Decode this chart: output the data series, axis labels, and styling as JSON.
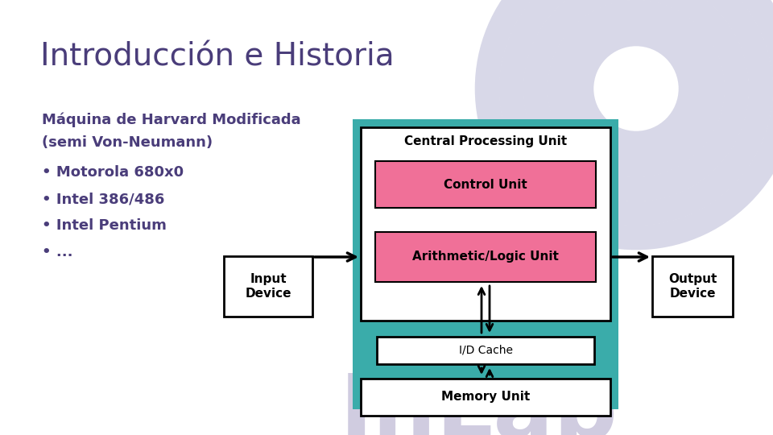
{
  "title": "Introducción e Historia",
  "title_color": "#4a3d7a",
  "title_fontsize": 28,
  "bg_color": "#ffffff",
  "subtitle_line1": "Máquina de Harvard Modificada",
  "subtitle_line2": "(semi Von-Neumann)",
  "text_color": "#4a3d7a",
  "bullets": [
    "Motorola 680x0",
    "Intel 386/486",
    "Intel Pentium",
    "..."
  ],
  "watermark_color": "#d8d8e8",
  "teal_color": "#3aacaa",
  "pink_color": "#f07098",
  "white_color": "#ffffff",
  "black_color": "#000000",
  "inlab_color": "#d0cce0",
  "cpu_label": "Central Processing Unit",
  "cu_label": "Control Unit",
  "alu_label": "Arithmetic/Logic Unit",
  "cache_label": "I/D Cache",
  "mem_label": "Memory Unit",
  "inp_label": "Input\nDevice",
  "out_label": "Output\nDevice"
}
